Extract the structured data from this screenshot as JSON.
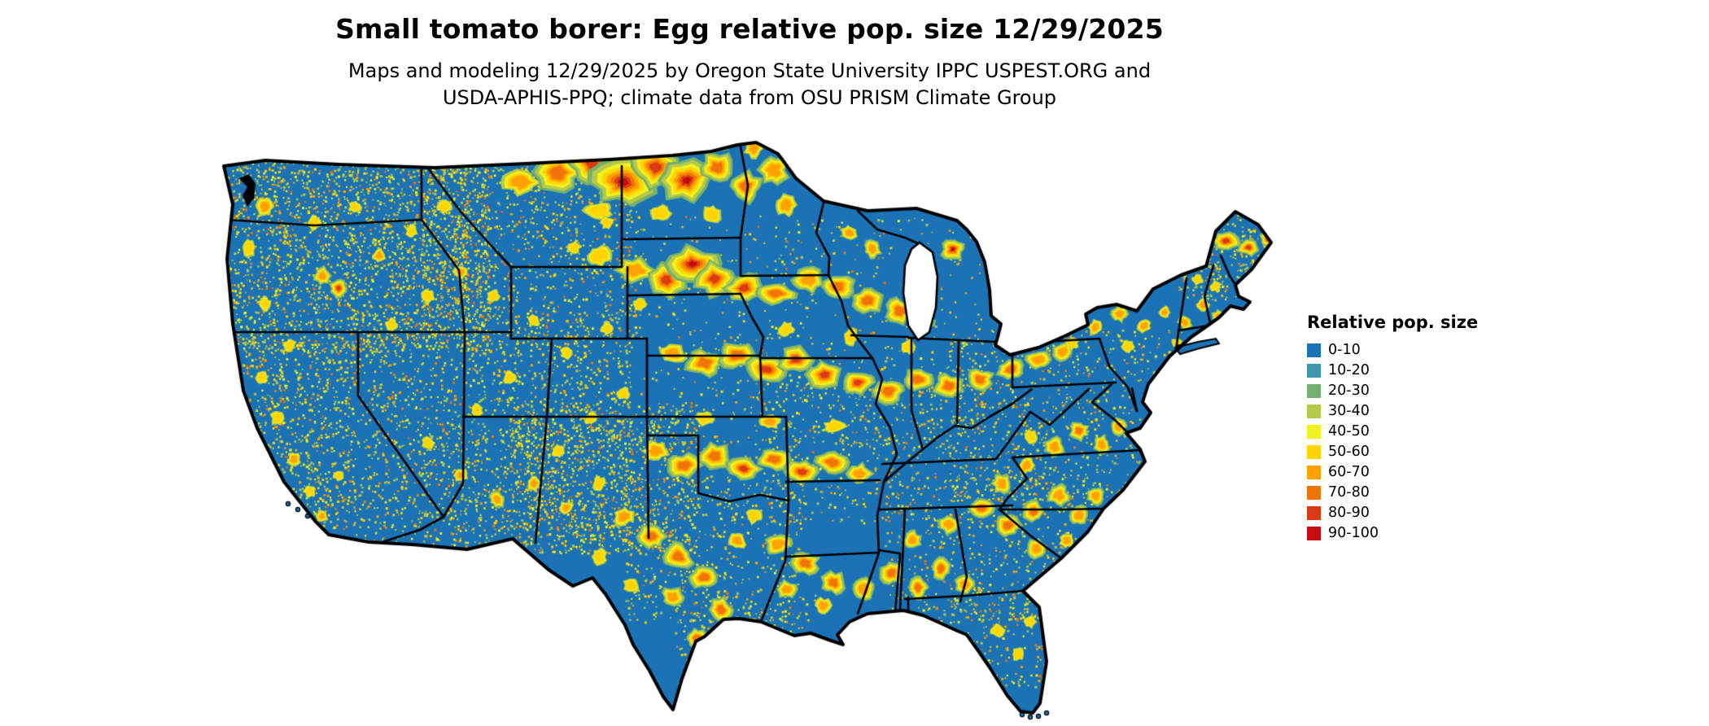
{
  "title": "Small tomato borer: Egg relative pop. size 12/29/2025",
  "subtitle_line1": "Maps and modeling 12/29/2025 by Oregon State University IPPC USPEST.ORG and",
  "subtitle_line2": "USDA-APHIS-PPQ; climate data from OSU PRISM Climate Group",
  "legend": {
    "title": "Relative pop. size",
    "items": [
      {
        "label": "0-10",
        "color": "#1b73b6"
      },
      {
        "label": "10-20",
        "color": "#3f97a9"
      },
      {
        "label": "20-30",
        "color": "#73b06f"
      },
      {
        "label": "30-40",
        "color": "#b6c94a"
      },
      {
        "label": "40-50",
        "color": "#eef21e"
      },
      {
        "label": "50-60",
        "color": "#ffd400"
      },
      {
        "label": "60-70",
        "color": "#ffa201"
      },
      {
        "label": "70-80",
        "color": "#f17409"
      },
      {
        "label": "80-90",
        "color": "#dc3a12"
      },
      {
        "label": "90-100",
        "color": "#c50d0d"
      }
    ]
  },
  "map": {
    "region": "Contiguous United States",
    "base_bin": "0-10",
    "base_color": "#1b73b6",
    "boundary_color": "#000000",
    "background_color": "#ffffff"
  }
}
